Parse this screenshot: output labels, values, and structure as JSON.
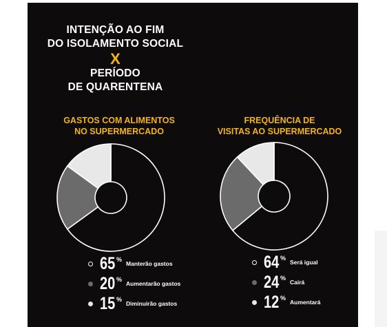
{
  "headline": {
    "line1": "INTENÇÃO AO FIM",
    "line2": "DO ISOLAMENTO SOCIAL",
    "vs": "X",
    "line3": "PERÍODO",
    "line4": "DE QUARENTENA"
  },
  "colors": {
    "background": "#0d0b0c",
    "accent": "#f6b318",
    "slice_dark": "#0d0b0c",
    "slice_mid": "#6b6b6b",
    "slice_light": "#e8e8e8",
    "stroke": "#ffffff"
  },
  "chart_data": [
    {
      "type": "pie",
      "title_line1": "GASTOS COM ALIMENTOS",
      "title_line2": "NO SUPERMERCADO",
      "percent_sign": "%",
      "slices": [
        {
          "value": 65,
          "label": "Manterão gastos",
          "value_text": "65",
          "color": "#0d0b0c",
          "marker": "ring"
        },
        {
          "value": 20,
          "label": "Aumentarão gastos",
          "value_text": "20",
          "color": "#6b6b6b",
          "marker": "grey"
        },
        {
          "value": 15,
          "label": "Diminuirão gastos",
          "value_text": "15",
          "color": "#e8e8e8",
          "marker": "light"
        }
      ]
    },
    {
      "type": "pie",
      "title_line1": "FREQUÊNCIA DE",
      "title_line2": "VISITAS AO SUPERMERCADO",
      "percent_sign": "%",
      "slices": [
        {
          "value": 64,
          "label": "Será igual",
          "value_text": "64",
          "color": "#0d0b0c",
          "marker": "ring"
        },
        {
          "value": 24,
          "label": "Cairá",
          "value_text": "24",
          "color": "#6b6b6b",
          "marker": "grey"
        },
        {
          "value": 12,
          "label": "Aumentará",
          "value_text": "12",
          "color": "#e8e8e8",
          "marker": "light"
        }
      ]
    }
  ]
}
